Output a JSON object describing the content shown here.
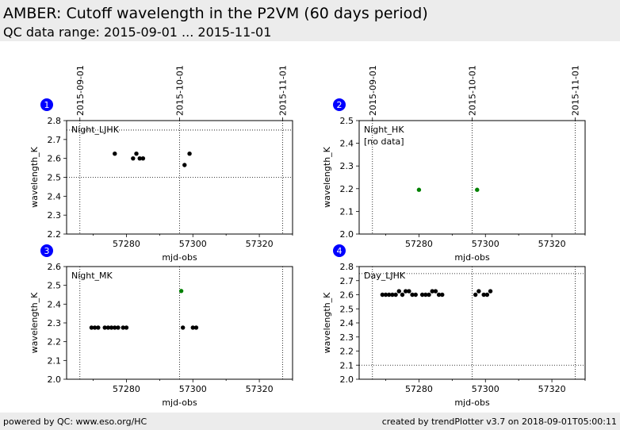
{
  "header": {
    "title": "AMBER: Cutoff wavelength in the P2VM (60 days period)",
    "subtitle": "QC data range: 2015-09-01 ... 2015-11-01"
  },
  "footer": {
    "left": "powered by QC: www.eso.org/HC",
    "right": "created by trendPlotter v3.7 on 2018-09-01T05:00:11"
  },
  "date_markers": [
    {
      "label": "2015-09-01",
      "mjd": 57266
    },
    {
      "label": "2015-10-01",
      "mjd": 57296
    },
    {
      "label": "2015-11-01",
      "mjd": 57327
    }
  ],
  "colors": {
    "black_points": "#000000",
    "green_points": "#008000",
    "badge": "#0000ff"
  },
  "chart_data": [
    {
      "type": "scatter",
      "panel": "1",
      "label": "Night_LJHK",
      "no_data_note": "",
      "xlabel": "mjd-obs",
      "ylabel": "wavelength_K",
      "xlim": [
        57262,
        57330
      ],
      "ylim": [
        2.2,
        2.8
      ],
      "yticks": [
        2.2,
        2.3,
        2.4,
        2.5,
        2.6,
        2.7,
        2.8
      ],
      "xticks": [
        57280,
        57300,
        57320
      ],
      "ref_lines": [
        2.5,
        2.75
      ],
      "series": [
        {
          "color": "black",
          "x": [
            57276.5,
            57282,
            57283,
            57284,
            57285,
            57297.5,
            57299
          ],
          "y": [
            2.625,
            2.6,
            2.625,
            2.6,
            2.6,
            2.565,
            2.625
          ]
        }
      ]
    },
    {
      "type": "scatter",
      "panel": "2",
      "label": "Night_HK",
      "no_data_note": "[no data]",
      "xlabel": "mjd-obs",
      "ylabel": "wavelength_K",
      "xlim": [
        57262,
        57330
      ],
      "ylim": [
        2.0,
        2.5
      ],
      "yticks": [
        2.0,
        2.1,
        2.2,
        2.3,
        2.4,
        2.5
      ],
      "xticks": [
        57280,
        57300,
        57320
      ],
      "ref_lines": [],
      "series": [
        {
          "color": "green",
          "x": [
            57280,
            57297.5
          ],
          "y": [
            2.195,
            2.195
          ]
        }
      ]
    },
    {
      "type": "scatter",
      "panel": "3",
      "label": "Night_MK",
      "no_data_note": "",
      "xlabel": "mjd-obs",
      "ylabel": "wavelength_K",
      "xlim": [
        57262,
        57330
      ],
      "ylim": [
        2.0,
        2.6
      ],
      "yticks": [
        2.0,
        2.1,
        2.2,
        2.3,
        2.4,
        2.5,
        2.6
      ],
      "xticks": [
        57280,
        57300,
        57320
      ],
      "ref_lines": [],
      "series": [
        {
          "color": "black",
          "x": [
            57269.5,
            57270.5,
            57271.5,
            57273.5,
            57274.5,
            57275.5,
            57276.5,
            57277.5,
            57279,
            57280,
            57297,
            57300,
            57301
          ],
          "y": [
            2.275,
            2.275,
            2.275,
            2.275,
            2.275,
            2.275,
            2.275,
            2.275,
            2.275,
            2.275,
            2.275,
            2.275,
            2.275
          ]
        },
        {
          "color": "green",
          "x": [
            57296.5
          ],
          "y": [
            2.47
          ]
        }
      ]
    },
    {
      "type": "scatter",
      "panel": "4",
      "label": "Day_LJHK",
      "no_data_note": "",
      "xlabel": "mjd-obs",
      "ylabel": "wavelength_K",
      "xlim": [
        57262,
        57330
      ],
      "ylim": [
        2.0,
        2.8
      ],
      "yticks": [
        2.0,
        2.1,
        2.2,
        2.3,
        2.4,
        2.5,
        2.6,
        2.7,
        2.8
      ],
      "xticks": [
        57280,
        57300,
        57320
      ],
      "ref_lines": [
        2.1,
        2.75
      ],
      "series": [
        {
          "color": "black",
          "x": [
            57269,
            57270,
            57271,
            57272,
            57273,
            57274,
            57275,
            57276,
            57277,
            57278,
            57279,
            57281,
            57282,
            57283,
            57284,
            57285,
            57286,
            57287,
            57297,
            57298,
            57299.5,
            57300.5,
            57301.5
          ],
          "y": [
            2.6,
            2.6,
            2.6,
            2.6,
            2.6,
            2.625,
            2.6,
            2.625,
            2.625,
            2.6,
            2.6,
            2.6,
            2.6,
            2.6,
            2.625,
            2.625,
            2.6,
            2.6,
            2.6,
            2.625,
            2.6,
            2.6,
            2.625
          ]
        }
      ]
    }
  ]
}
